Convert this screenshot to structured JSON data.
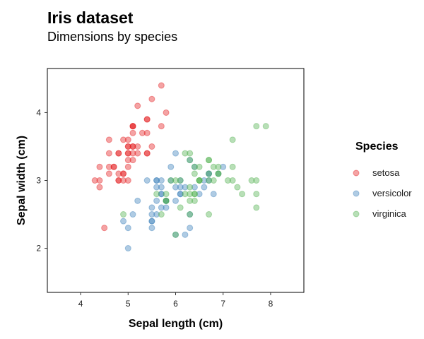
{
  "chart_data": {
    "type": "scatter",
    "title": "Iris dataset",
    "subtitle": "Dimensions by species",
    "xlabel": "Sepal length (cm)",
    "ylabel": "Sepal width (cm)",
    "xlim": [
      3.3,
      8.7
    ],
    "ylim": [
      1.35,
      4.65
    ],
    "xticks": [
      4,
      5,
      6,
      7,
      8
    ],
    "yticks": [
      2,
      3,
      4
    ],
    "grid": false,
    "legend": {
      "title": "Species",
      "position": "right"
    },
    "series": [
      {
        "name": "setosa",
        "color": "#e41a1c",
        "points": [
          [
            5.1,
            3.5
          ],
          [
            4.9,
            3.0
          ],
          [
            4.7,
            3.2
          ],
          [
            4.6,
            3.1
          ],
          [
            5.0,
            3.6
          ],
          [
            5.4,
            3.9
          ],
          [
            4.6,
            3.4
          ],
          [
            5.0,
            3.4
          ],
          [
            4.4,
            2.9
          ],
          [
            4.9,
            3.1
          ],
          [
            5.4,
            3.7
          ],
          [
            4.8,
            3.4
          ],
          [
            4.8,
            3.0
          ],
          [
            4.3,
            3.0
          ],
          [
            5.8,
            4.0
          ],
          [
            5.7,
            4.4
          ],
          [
            5.4,
            3.9
          ],
          [
            5.1,
            3.5
          ],
          [
            5.7,
            3.8
          ],
          [
            5.1,
            3.8
          ],
          [
            5.4,
            3.4
          ],
          [
            5.1,
            3.7
          ],
          [
            4.6,
            3.6
          ],
          [
            5.1,
            3.3
          ],
          [
            4.8,
            3.4
          ],
          [
            5.0,
            3.0
          ],
          [
            5.0,
            3.4
          ],
          [
            5.2,
            3.5
          ],
          [
            5.2,
            3.4
          ],
          [
            4.7,
            3.2
          ],
          [
            4.8,
            3.1
          ],
          [
            5.4,
            3.4
          ],
          [
            5.2,
            4.1
          ],
          [
            5.5,
            4.2
          ],
          [
            4.9,
            3.1
          ],
          [
            5.0,
            3.2
          ],
          [
            5.5,
            3.5
          ],
          [
            4.9,
            3.6
          ],
          [
            4.4,
            3.0
          ],
          [
            5.1,
            3.4
          ],
          [
            5.0,
            3.5
          ],
          [
            4.5,
            2.3
          ],
          [
            4.4,
            3.2
          ],
          [
            5.0,
            3.5
          ],
          [
            5.1,
            3.8
          ],
          [
            4.8,
            3.0
          ],
          [
            5.1,
            3.8
          ],
          [
            4.6,
            3.2
          ],
          [
            5.3,
            3.7
          ],
          [
            5.0,
            3.3
          ]
        ]
      },
      {
        "name": "versicolor",
        "color": "#377eb8",
        "points": [
          [
            7.0,
            3.2
          ],
          [
            6.4,
            3.2
          ],
          [
            6.9,
            3.1
          ],
          [
            5.5,
            2.3
          ],
          [
            6.5,
            2.8
          ],
          [
            5.7,
            2.8
          ],
          [
            6.3,
            3.3
          ],
          [
            4.9,
            2.4
          ],
          [
            6.6,
            2.9
          ],
          [
            5.2,
            2.7
          ],
          [
            5.0,
            2.0
          ],
          [
            5.9,
            3.0
          ],
          [
            6.0,
            2.2
          ],
          [
            6.1,
            2.9
          ],
          [
            5.6,
            2.9
          ],
          [
            6.7,
            3.1
          ],
          [
            5.6,
            3.0
          ],
          [
            5.8,
            2.7
          ],
          [
            6.2,
            2.2
          ],
          [
            5.6,
            2.5
          ],
          [
            5.9,
            3.2
          ],
          [
            6.1,
            2.8
          ],
          [
            6.3,
            2.5
          ],
          [
            6.1,
            2.8
          ],
          [
            6.4,
            2.9
          ],
          [
            6.6,
            3.0
          ],
          [
            6.8,
            2.8
          ],
          [
            6.7,
            3.0
          ],
          [
            6.0,
            2.9
          ],
          [
            5.7,
            2.6
          ],
          [
            5.5,
            2.4
          ],
          [
            5.5,
            2.4
          ],
          [
            5.8,
            2.7
          ],
          [
            6.0,
            2.7
          ],
          [
            5.4,
            3.0
          ],
          [
            6.0,
            3.4
          ],
          [
            6.7,
            3.1
          ],
          [
            6.3,
            2.3
          ],
          [
            5.6,
            3.0
          ],
          [
            5.5,
            2.5
          ],
          [
            5.5,
            2.6
          ],
          [
            6.1,
            3.0
          ],
          [
            5.8,
            2.6
          ],
          [
            5.0,
            2.3
          ],
          [
            5.6,
            2.7
          ],
          [
            5.7,
            3.0
          ],
          [
            5.7,
            2.9
          ],
          [
            6.2,
            2.9
          ],
          [
            5.1,
            2.5
          ],
          [
            5.7,
            2.8
          ]
        ]
      },
      {
        "name": "virginica",
        "color": "#4daf4a",
        "points": [
          [
            6.3,
            3.3
          ],
          [
            5.8,
            2.7
          ],
          [
            7.1,
            3.0
          ],
          [
            6.3,
            2.9
          ],
          [
            6.5,
            3.0
          ],
          [
            7.6,
            3.0
          ],
          [
            4.9,
            2.5
          ],
          [
            7.3,
            2.9
          ],
          [
            6.7,
            2.5
          ],
          [
            7.2,
            3.6
          ],
          [
            6.5,
            3.2
          ],
          [
            6.4,
            2.7
          ],
          [
            6.8,
            3.0
          ],
          [
            5.7,
            2.5
          ],
          [
            5.8,
            2.8
          ],
          [
            6.4,
            3.2
          ],
          [
            6.5,
            3.0
          ],
          [
            7.7,
            3.8
          ],
          [
            7.7,
            2.6
          ],
          [
            6.0,
            2.2
          ],
          [
            6.9,
            3.2
          ],
          [
            5.6,
            2.8
          ],
          [
            7.7,
            2.8
          ],
          [
            6.3,
            2.7
          ],
          [
            6.7,
            3.3
          ],
          [
            7.2,
            3.2
          ],
          [
            6.2,
            2.8
          ],
          [
            6.1,
            3.0
          ],
          [
            6.4,
            2.8
          ],
          [
            7.2,
            3.0
          ],
          [
            7.4,
            2.8
          ],
          [
            7.9,
            3.8
          ],
          [
            6.4,
            2.8
          ],
          [
            6.3,
            2.8
          ],
          [
            6.1,
            2.6
          ],
          [
            7.7,
            3.0
          ],
          [
            6.3,
            3.4
          ],
          [
            6.4,
            3.1
          ],
          [
            6.0,
            3.0
          ],
          [
            6.9,
            3.1
          ],
          [
            6.7,
            3.1
          ],
          [
            6.9,
            3.1
          ],
          [
            5.8,
            2.7
          ],
          [
            6.8,
            3.2
          ],
          [
            6.7,
            3.3
          ],
          [
            6.7,
            3.0
          ],
          [
            6.3,
            2.5
          ],
          [
            6.5,
            3.0
          ],
          [
            6.2,
            3.4
          ],
          [
            5.9,
            3.0
          ]
        ]
      }
    ]
  }
}
